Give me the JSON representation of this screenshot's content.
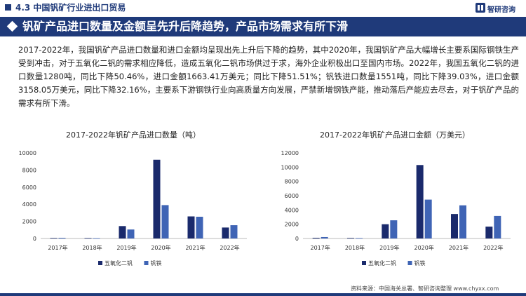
{
  "header": {
    "section_title": "4.3 中国钒矿行业进出口贸易",
    "logo_text": "智研咨询"
  },
  "banner": {
    "title": "钒矿产品进口数量及金额呈先升后降趋势，产品市场需求有所下滑"
  },
  "paragraph": "2017-2022年，我国钒矿产品进口数量和进口金额均呈现出先上升后下降的趋势，其中2020年，我国钒矿产品大幅增长主要系国际钢铁生产受到冲击，对于五氧化二钒的需求相应降低，造成五氧化二钒市场供过于求，海外企业积极出口至国内市场。2022年，我国五氧化二钒的进口数量1280吨，同比下降50.46%，进口金额1663.41万美元；同比下降51.51%；钒铁进口数量1551吨，同比下降39.03%，进口金额3158.05万美元，同比下降32.16%，主要系下游钢铁行业向高质量方向发展，严禁新增钢铁产能，推动落后产能应去尽去，对于钒矿产品的需求有所下滑。",
  "source": "资料来源：中国海关总署、智研咨询整理  www.chyxx.com",
  "colors": {
    "primary": "#1f3a7a",
    "series_dark": "#1a2a6c",
    "series_light": "#3f64b5"
  },
  "chart_data": [
    {
      "type": "bar",
      "title": "2017-2022年钒矿产品进口数量（吨）",
      "categories": [
        "2017年",
        "2018年",
        "2019年",
        "2020年",
        "2021年",
        "2022年"
      ],
      "ylim": [
        0,
        10000
      ],
      "yticks": [
        "0",
        "2000",
        "4000",
        "6000",
        "8000",
        "10000"
      ],
      "series": [
        {
          "name": "五氧化二钒",
          "values": [
            60,
            50,
            1450,
            9200,
            2580,
            1280
          ]
        },
        {
          "name": "钒铁",
          "values": [
            80,
            30,
            1050,
            3900,
            2540,
            1551
          ]
        }
      ],
      "legend_position": "bottom"
    },
    {
      "type": "bar",
      "title": "2017-2022年钒矿产品进口金额（万美元）",
      "categories": [
        "2017年",
        "2018年",
        "2019年",
        "2020年",
        "2021年",
        "2022年"
      ],
      "ylim": [
        0,
        12000
      ],
      "yticks": [
        "0",
        "2000",
        "4000",
        "6000",
        "8000",
        "10000",
        "12000"
      ],
      "series": [
        {
          "name": "五氧化二钒",
          "values": [
            100,
            80,
            2000,
            10300,
            3430,
            1663.41
          ]
        },
        {
          "name": "钒铁",
          "values": [
            200,
            60,
            2550,
            5450,
            4650,
            3158.05
          ]
        }
      ],
      "legend_position": "bottom"
    }
  ]
}
